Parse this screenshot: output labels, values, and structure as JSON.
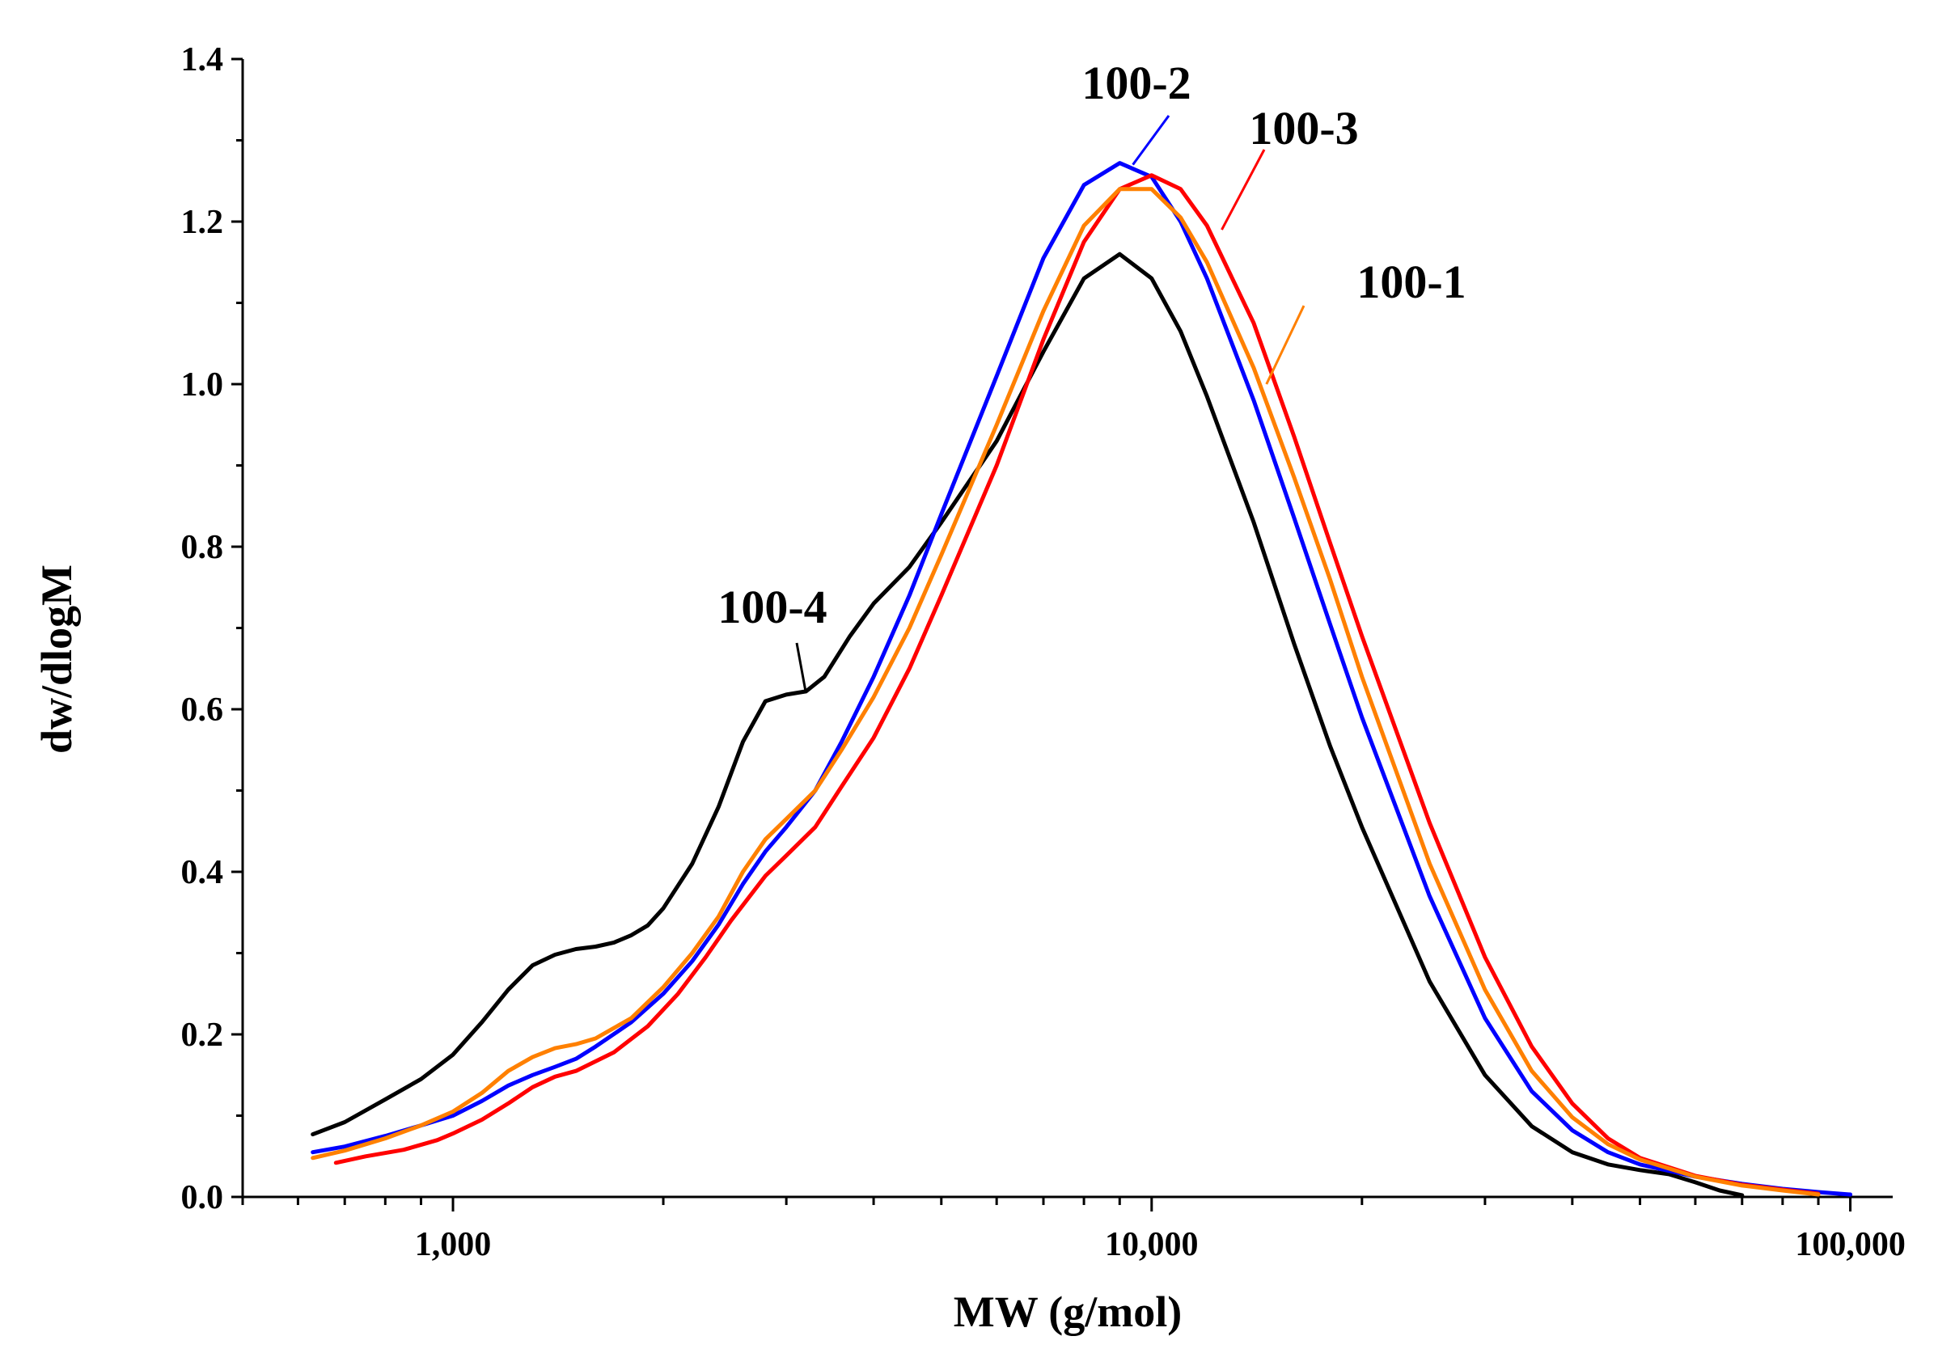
{
  "chart_data": {
    "type": "line",
    "title": "",
    "xlabel": "MW (g/mol)",
    "ylabel": "dw/dlogM",
    "x_scale": "log",
    "xlim": [
      500,
      115000
    ],
    "ylim": [
      0.0,
      1.4
    ],
    "grid": false,
    "x_major_ticks": [
      1000,
      10000,
      100000
    ],
    "x_tick_labels": [
      "1,000",
      "10,000",
      "100,000"
    ],
    "y_ticks": [
      0.0,
      0.2,
      0.4,
      0.6,
      0.8,
      1.0,
      1.2,
      1.4
    ],
    "y_tick_labels": [
      "0.0",
      "0.2",
      "0.4",
      "0.6",
      "0.8",
      "1.0",
      "1.2",
      "1.4"
    ],
    "series": [
      {
        "name": "100-4",
        "color": "#000000",
        "points": [
          [
            630,
            0.077
          ],
          [
            700,
            0.092
          ],
          [
            800,
            0.12
          ],
          [
            900,
            0.145
          ],
          [
            1000,
            0.175
          ],
          [
            1100,
            0.215
          ],
          [
            1200,
            0.255
          ],
          [
            1300,
            0.285
          ],
          [
            1400,
            0.298
          ],
          [
            1500,
            0.305
          ],
          [
            1600,
            0.308
          ],
          [
            1700,
            0.313
          ],
          [
            1800,
            0.322
          ],
          [
            1900,
            0.334
          ],
          [
            2000,
            0.355
          ],
          [
            2200,
            0.41
          ],
          [
            2400,
            0.48
          ],
          [
            2600,
            0.56
          ],
          [
            2800,
            0.61
          ],
          [
            3000,
            0.618
          ],
          [
            3200,
            0.622
          ],
          [
            3400,
            0.64
          ],
          [
            3700,
            0.69
          ],
          [
            4000,
            0.73
          ],
          [
            4500,
            0.775
          ],
          [
            5000,
            0.83
          ],
          [
            6000,
            0.93
          ],
          [
            7000,
            1.04
          ],
          [
            8000,
            1.13
          ],
          [
            9000,
            1.16
          ],
          [
            10000,
            1.13
          ],
          [
            11000,
            1.065
          ],
          [
            12000,
            0.985
          ],
          [
            14000,
            0.83
          ],
          [
            16000,
            0.68
          ],
          [
            18000,
            0.555
          ],
          [
            20000,
            0.455
          ],
          [
            25000,
            0.265
          ],
          [
            30000,
            0.15
          ],
          [
            35000,
            0.087
          ],
          [
            40000,
            0.055
          ],
          [
            45000,
            0.04
          ],
          [
            50000,
            0.033
          ],
          [
            55000,
            0.028
          ],
          [
            60000,
            0.018
          ],
          [
            65000,
            0.008
          ],
          [
            70000,
            0.002
          ]
        ]
      },
      {
        "name": "100-2",
        "color": "#0000ff",
        "points": [
          [
            630,
            0.055
          ],
          [
            700,
            0.062
          ],
          [
            800,
            0.075
          ],
          [
            900,
            0.088
          ],
          [
            1000,
            0.1
          ],
          [
            1100,
            0.118
          ],
          [
            1200,
            0.137
          ],
          [
            1300,
            0.15
          ],
          [
            1400,
            0.16
          ],
          [
            1500,
            0.17
          ],
          [
            1600,
            0.185
          ],
          [
            1800,
            0.215
          ],
          [
            2000,
            0.25
          ],
          [
            2200,
            0.29
          ],
          [
            2400,
            0.335
          ],
          [
            2600,
            0.385
          ],
          [
            2800,
            0.425
          ],
          [
            3000,
            0.455
          ],
          [
            3300,
            0.5
          ],
          [
            3600,
            0.56
          ],
          [
            4000,
            0.64
          ],
          [
            4500,
            0.74
          ],
          [
            5000,
            0.84
          ],
          [
            6000,
            1.01
          ],
          [
            7000,
            1.155
          ],
          [
            8000,
            1.245
          ],
          [
            9000,
            1.272
          ],
          [
            10000,
            1.255
          ],
          [
            11000,
            1.2
          ],
          [
            12000,
            1.13
          ],
          [
            14000,
            0.98
          ],
          [
            16000,
            0.835
          ],
          [
            18000,
            0.705
          ],
          [
            20000,
            0.59
          ],
          [
            25000,
            0.37
          ],
          [
            30000,
            0.22
          ],
          [
            35000,
            0.13
          ],
          [
            40000,
            0.082
          ],
          [
            45000,
            0.055
          ],
          [
            50000,
            0.04
          ],
          [
            60000,
            0.025
          ],
          [
            70000,
            0.016
          ],
          [
            80000,
            0.01
          ],
          [
            90000,
            0.006
          ],
          [
            100000,
            0.003
          ]
        ]
      },
      {
        "name": "100-3",
        "color": "#ff0000",
        "points": [
          [
            680,
            0.042
          ],
          [
            750,
            0.05
          ],
          [
            850,
            0.058
          ],
          [
            950,
            0.07
          ],
          [
            1000,
            0.078
          ],
          [
            1100,
            0.095
          ],
          [
            1200,
            0.115
          ],
          [
            1300,
            0.135
          ],
          [
            1400,
            0.148
          ],
          [
            1500,
            0.155
          ],
          [
            1700,
            0.178
          ],
          [
            1900,
            0.21
          ],
          [
            2100,
            0.25
          ],
          [
            2300,
            0.295
          ],
          [
            2500,
            0.34
          ],
          [
            2800,
            0.395
          ],
          [
            3000,
            0.42
          ],
          [
            3300,
            0.455
          ],
          [
            3600,
            0.505
          ],
          [
            4000,
            0.565
          ],
          [
            4500,
            0.65
          ],
          [
            5000,
            0.74
          ],
          [
            6000,
            0.9
          ],
          [
            7000,
            1.055
          ],
          [
            8000,
            1.175
          ],
          [
            9000,
            1.24
          ],
          [
            10000,
            1.257
          ],
          [
            11000,
            1.24
          ],
          [
            12000,
            1.195
          ],
          [
            14000,
            1.075
          ],
          [
            16000,
            0.935
          ],
          [
            18000,
            0.805
          ],
          [
            20000,
            0.69
          ],
          [
            25000,
            0.46
          ],
          [
            30000,
            0.295
          ],
          [
            35000,
            0.185
          ],
          [
            40000,
            0.115
          ],
          [
            45000,
            0.072
          ],
          [
            50000,
            0.048
          ],
          [
            60000,
            0.026
          ],
          [
            70000,
            0.015
          ],
          [
            80000,
            0.009
          ],
          [
            90000,
            0.004
          ]
        ]
      },
      {
        "name": "100-1",
        "color": "#ff8000",
        "points": [
          [
            630,
            0.048
          ],
          [
            700,
            0.057
          ],
          [
            800,
            0.072
          ],
          [
            900,
            0.088
          ],
          [
            1000,
            0.105
          ],
          [
            1100,
            0.128
          ],
          [
            1200,
            0.155
          ],
          [
            1300,
            0.172
          ],
          [
            1400,
            0.183
          ],
          [
            1500,
            0.188
          ],
          [
            1600,
            0.195
          ],
          [
            1800,
            0.22
          ],
          [
            2000,
            0.258
          ],
          [
            2200,
            0.3
          ],
          [
            2400,
            0.345
          ],
          [
            2600,
            0.4
          ],
          [
            2800,
            0.44
          ],
          [
            3000,
            0.465
          ],
          [
            3300,
            0.5
          ],
          [
            3600,
            0.55
          ],
          [
            4000,
            0.615
          ],
          [
            4500,
            0.7
          ],
          [
            5000,
            0.79
          ],
          [
            6000,
            0.95
          ],
          [
            7000,
            1.09
          ],
          [
            8000,
            1.195
          ],
          [
            9000,
            1.24
          ],
          [
            10000,
            1.24
          ],
          [
            11000,
            1.205
          ],
          [
            12000,
            1.15
          ],
          [
            14000,
            1.02
          ],
          [
            16000,
            0.885
          ],
          [
            18000,
            0.76
          ],
          [
            20000,
            0.64
          ],
          [
            25000,
            0.41
          ],
          [
            30000,
            0.255
          ],
          [
            35000,
            0.155
          ],
          [
            40000,
            0.098
          ],
          [
            45000,
            0.065
          ],
          [
            50000,
            0.046
          ],
          [
            60000,
            0.025
          ],
          [
            70000,
            0.014
          ],
          [
            80000,
            0.008
          ],
          [
            90000,
            0.003
          ]
        ]
      }
    ],
    "annotations": [
      {
        "text": "100-4",
        "series": "100-4",
        "at_x": 3200,
        "at_y": 0.62
      },
      {
        "text": "100-2",
        "series": "100-2",
        "at_x": 9400,
        "at_y": 1.27
      },
      {
        "text": "100-3",
        "series": "100-3",
        "at_x": 12600,
        "at_y": 1.19
      },
      {
        "text": "100-1",
        "series": "100-1",
        "at_x": 14600,
        "at_y": 1.0
      }
    ]
  }
}
